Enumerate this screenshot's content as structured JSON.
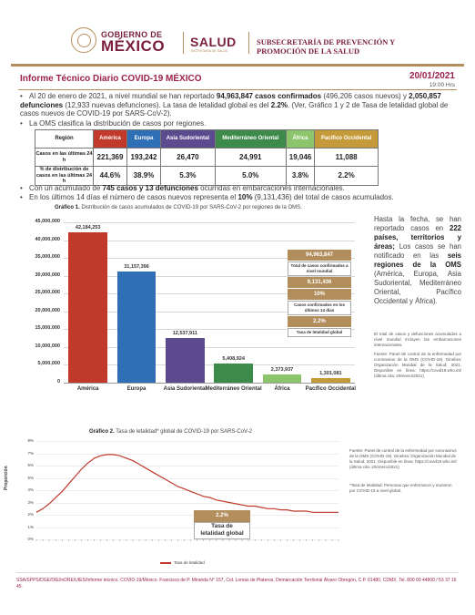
{
  "header": {
    "gob_small": "GOBIERNO DE",
    "gob_big": "MÉXICO",
    "salud": "SALUD",
    "salud_sub": "SECRETARÍA DE SALUD",
    "subsecretaria": "SUBSECRETARÍA DE PREVENCIÓN Y PROMOCIÓN DE LA SALUD"
  },
  "report": {
    "title": "Informe Técnico Diario COVID-19 MÉXICO",
    "date": "20/01/2021",
    "time": "19:00 Hrs"
  },
  "bullets": {
    "b1_pre": "Al 20 de enero de 2021, a nivel mundial se han reportado ",
    "b1_cases": "94,963,847 casos confirmados",
    "b1_mid": " (496,206 casos nuevos) y ",
    "b1_deaths": "2,050,857 defunciones",
    "b1_mid2": " (12,933 nuevas defunciones). La tasa de letalidad global es del ",
    "b1_rate": "2.2%",
    "b1_post": ". (Ver, Gráfico 1 y 2 de Tasa de letalidad global de casos nuevos de COVID-19 por SARS-CoV-2).",
    "b2": "La OMS clasifica la distribución de casos por regiones.",
    "b3_pre": "Con un acumulado de ",
    "b3_bold": "745 casos y 13 defunciones",
    "b3_post": " ocurridas en embarcaciones internacionales.",
    "b4_pre": "En los últimos 14 días el número de casos nuevos representa el ",
    "b4_bold": "10%",
    "b4_post": " (9,131,436) del total de casos acumulados."
  },
  "region_table": {
    "header_label": "Región",
    "row1_label": "Casos en las últimas 24 h",
    "row2_label": "% de distribución de casos en las últimas 24 h",
    "regions": [
      {
        "name": "América",
        "color": "#c0392b",
        "cases": "221,369",
        "pct": "44.6%"
      },
      {
        "name": "Europa",
        "color": "#2e6fb5",
        "cases": "193,242",
        "pct": "38.9%"
      },
      {
        "name": "Asia Sudoriental",
        "color": "#5b4a8e",
        "cases": "26,470",
        "pct": "5.3%"
      },
      {
        "name": "Mediterráneo Oriental",
        "color": "#3d8b4a",
        "cases": "24,991",
        "pct": "5.0%"
      },
      {
        "name": "África",
        "color": "#8cc56b",
        "cases": "19,046",
        "pct": "3.8%"
      },
      {
        "name": "Pacífico Occidental",
        "color": "#c49a3a",
        "cases": "11,088",
        "pct": "2.2%"
      }
    ]
  },
  "chart1": {
    "title_bold": "Gráfico 1.",
    "title_rest": " Distribución de casos acumulados de COVID-19 por SARS-CoV-2 por regiones de la OMS."
  },
  "side_boxes": [
    {
      "value": "94,963,847",
      "label": "Total de casos confirmados a nivel mundial"
    },
    {
      "value": "9,131,436",
      "label": ""
    },
    {
      "value": "10%",
      "label": "Casos confirmados en los últimos 14 días"
    },
    {
      "value": "2.2%",
      "label": "Tasa de letalidad global"
    }
  ],
  "side": {
    "text_pre": "Hasta la fecha, se han reportado casos en ",
    "text_bold1": "222 países, territorios y áreas;",
    "text_mid": " Los casos se han notificado en las ",
    "text_bold2": "seis regiones de la OMS",
    "text_post": " (América, Europa, Asia Sudoriental, Mediterráneo Oriental, Pacífico Occidental y África).",
    "note1": "El total de casos y defunciones acumulados a nivel mundial incluyen las embarcaciones internacionales.",
    "note2": "Fuente: Panel de control de la enfermedad por coronavirus de la OMS (COVID-19). Ginebra: Organización Mundial de la Salud; 2021. Disponible en línea: https://covid19.who.int/ (última cita: 20/enero/2021)"
  },
  "chart2": {
    "title_bold": "Gráfico 2.",
    "title_rest": " Tasa de letalidad* global de COVID-19 por SARS-CoV-2",
    "ylabel": "Proporción",
    "legend": "Tasa de letalidad",
    "box_value": "2.2%",
    "box_label1": "Tasa de",
    "box_label2": "letalidad global",
    "note_source": "Fuente: Panel de control de la enfermedad por coronavirus de la OMS (COVID-19). Ginebra: Organización Mundial de la Salud, 2021. Disponible en línea: https://covid19.who.int/ (última cita: 20/enero/2021)",
    "note_def": "*Tasa de letalidad: Personas que enfermaron y murieron por COVID-19 a nivel global."
  },
  "footer": "SSA/SPPS/DGE/DIE/InDRE/UIES/Informe técnico. COVID-19/México. Francisco de P. Miranda N° 157, Col. Lomas de Plateros, Demarcación Territorial Álvaro Obregón, C.P. 01480, CDMX. Tel. 800 00 44800 / 53 37 16 45.",
  "chart_data": [
    {
      "type": "bar",
      "title": "Distribución de casos acumulados de COVID-19 por SARS-CoV-2 por regiones de la OMS.",
      "categories": [
        "América",
        "Europa",
        "Asia Sudoriental",
        "Mediterráneo Oriental",
        "África",
        "Pacífico Occidental"
      ],
      "values": [
        42184253,
        31157396,
        12537911,
        5408924,
        2373937,
        1301081
      ],
      "value_labels": [
        "42,184,253",
        "31,157,396",
        "12,537,911",
        "5,408,924",
        "2,373,937",
        "1,301,081"
      ],
      "colors": [
        "#c0392b",
        "#2e6fb5",
        "#5b4a8e",
        "#3d8b4a",
        "#8cc56b",
        "#c49a3a"
      ],
      "ylim": [
        0,
        45000000
      ],
      "yticks": [
        0,
        5000000,
        10000000,
        15000000,
        20000000,
        25000000,
        30000000,
        35000000,
        40000000,
        45000000
      ],
      "ytick_labels": [
        "0",
        "5,000,000",
        "10,000,000",
        "15,000,000",
        "20,000,000",
        "25,000,000",
        "30,000,000",
        "35,000,000",
        "40,000,000",
        "45,000,000"
      ],
      "grid": true
    },
    {
      "type": "line",
      "title": "Tasa de letalidad* global de COVID-19 por SARS-CoV-2",
      "ylabel": "Proporción",
      "ylim": [
        0,
        8
      ],
      "yticks": [
        0,
        1,
        2,
        3,
        4,
        5,
        6,
        7,
        8
      ],
      "ytick_labels": [
        "0%",
        "1%",
        "2%",
        "3%",
        "4%",
        "5%",
        "6%",
        "7%",
        "8%"
      ],
      "series": [
        {
          "name": "Tasa de letalidad",
          "color": "#c0392b",
          "values": [
            2.2,
            2.5,
            2.9,
            3.4,
            3.9,
            4.5,
            5.1,
            5.7,
            6.2,
            6.6,
            6.8,
            6.9,
            6.9,
            6.8,
            6.6,
            6.4,
            6.1,
            5.8,
            5.5,
            5.2,
            4.9,
            4.6,
            4.3,
            4.1,
            3.9,
            3.7,
            3.5,
            3.4,
            3.2,
            3.1,
            3.0,
            2.9,
            2.8,
            2.7,
            2.7,
            2.6,
            2.5,
            2.5,
            2.4,
            2.4,
            2.3,
            2.3,
            2.3,
            2.2,
            2.2,
            2.2,
            2.2,
            2.2
          ]
        }
      ]
    }
  ]
}
